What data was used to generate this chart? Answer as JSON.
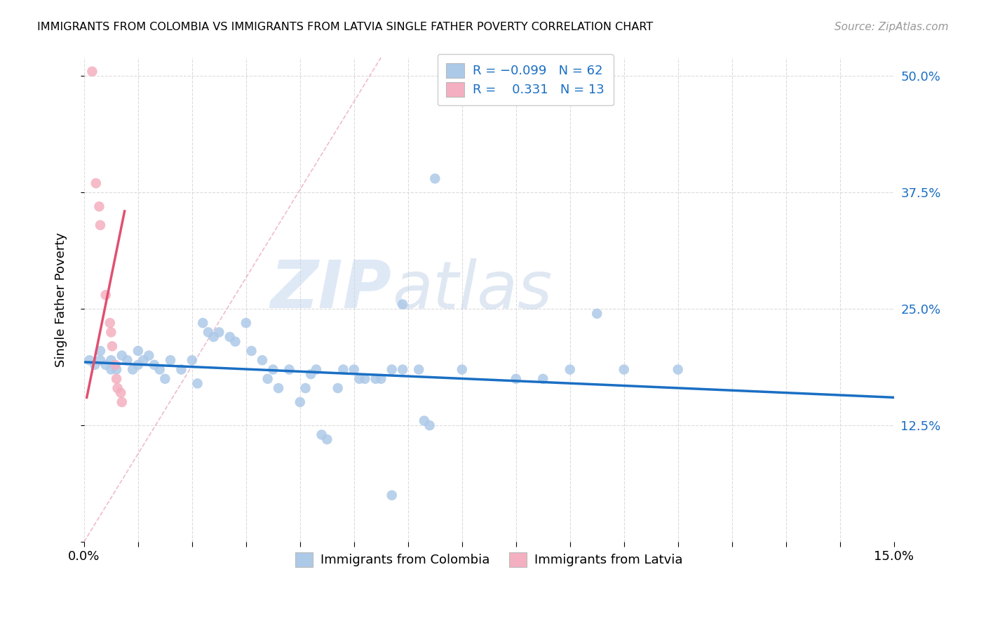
{
  "title": "IMMIGRANTS FROM COLOMBIA VS IMMIGRANTS FROM LATVIA SINGLE FATHER POVERTY CORRELATION CHART",
  "source": "Source: ZipAtlas.com",
  "ylabel": "Single Father Poverty",
  "xlim": [
    0.0,
    0.15
  ],
  "ylim": [
    0.0,
    0.52
  ],
  "yticks": [
    0.0,
    0.125,
    0.25,
    0.375,
    0.5
  ],
  "ytick_labels": [
    "",
    "12.5%",
    "25.0%",
    "37.5%",
    "50.0%"
  ],
  "colombia_color": "#adc9e8",
  "latvia_color": "#f4afc0",
  "colombia_line_color": "#1a6fc4",
  "latvia_line_color": "#e05070",
  "colombia_R": -0.099,
  "colombia_N": 62,
  "latvia_R": 0.331,
  "latvia_N": 13,
  "watermark_zip": "ZIP",
  "watermark_atlas": "atlas",
  "diag_line_x": [
    0.0,
    0.055
  ],
  "diag_line_y": [
    0.0,
    0.52
  ],
  "colombia_points": [
    [
      0.001,
      0.195
    ],
    [
      0.002,
      0.19
    ],
    [
      0.003,
      0.195
    ],
    [
      0.003,
      0.205
    ],
    [
      0.004,
      0.19
    ],
    [
      0.005,
      0.185
    ],
    [
      0.005,
      0.195
    ],
    [
      0.006,
      0.185
    ],
    [
      0.007,
      0.2
    ],
    [
      0.008,
      0.195
    ],
    [
      0.009,
      0.185
    ],
    [
      0.01,
      0.205
    ],
    [
      0.01,
      0.19
    ],
    [
      0.011,
      0.195
    ],
    [
      0.012,
      0.2
    ],
    [
      0.013,
      0.19
    ],
    [
      0.014,
      0.185
    ],
    [
      0.015,
      0.175
    ],
    [
      0.016,
      0.195
    ],
    [
      0.018,
      0.185
    ],
    [
      0.02,
      0.195
    ],
    [
      0.021,
      0.17
    ],
    [
      0.022,
      0.235
    ],
    [
      0.023,
      0.225
    ],
    [
      0.024,
      0.22
    ],
    [
      0.025,
      0.225
    ],
    [
      0.027,
      0.22
    ],
    [
      0.028,
      0.215
    ],
    [
      0.03,
      0.235
    ],
    [
      0.031,
      0.205
    ],
    [
      0.033,
      0.195
    ],
    [
      0.034,
      0.175
    ],
    [
      0.035,
      0.185
    ],
    [
      0.036,
      0.165
    ],
    [
      0.038,
      0.185
    ],
    [
      0.04,
      0.15
    ],
    [
      0.041,
      0.165
    ],
    [
      0.042,
      0.18
    ],
    [
      0.043,
      0.185
    ],
    [
      0.044,
      0.115
    ],
    [
      0.045,
      0.11
    ],
    [
      0.047,
      0.165
    ],
    [
      0.048,
      0.185
    ],
    [
      0.05,
      0.185
    ],
    [
      0.051,
      0.175
    ],
    [
      0.052,
      0.175
    ],
    [
      0.054,
      0.175
    ],
    [
      0.055,
      0.175
    ],
    [
      0.057,
      0.185
    ],
    [
      0.059,
      0.255
    ],
    [
      0.059,
      0.185
    ],
    [
      0.062,
      0.185
    ],
    [
      0.063,
      0.13
    ],
    [
      0.064,
      0.125
    ],
    [
      0.065,
      0.39
    ],
    [
      0.07,
      0.185
    ],
    [
      0.08,
      0.175
    ],
    [
      0.085,
      0.175
    ],
    [
      0.09,
      0.185
    ],
    [
      0.095,
      0.245
    ],
    [
      0.1,
      0.185
    ],
    [
      0.11,
      0.185
    ],
    [
      0.057,
      0.05
    ]
  ],
  "latvia_points": [
    [
      0.0015,
      0.505
    ],
    [
      0.0022,
      0.385
    ],
    [
      0.0028,
      0.36
    ],
    [
      0.003,
      0.34
    ],
    [
      0.004,
      0.265
    ],
    [
      0.0048,
      0.235
    ],
    [
      0.005,
      0.225
    ],
    [
      0.0052,
      0.21
    ],
    [
      0.0058,
      0.19
    ],
    [
      0.006,
      0.175
    ],
    [
      0.0062,
      0.165
    ],
    [
      0.0068,
      0.16
    ],
    [
      0.007,
      0.15
    ]
  ],
  "colombia_line_x": [
    0.0,
    0.15
  ],
  "colombia_line_y": [
    0.193,
    0.155
  ],
  "latvia_line_x": [
    0.0005,
    0.0075
  ],
  "latvia_line_y": [
    0.155,
    0.355
  ]
}
